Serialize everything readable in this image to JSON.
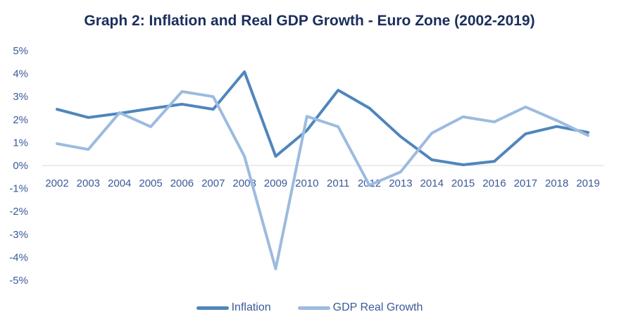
{
  "chart_data": {
    "type": "line",
    "title": "Graph 2: Inflation and Real GDP Growth - Euro Zone (2002-2019)",
    "x": [
      "2002",
      "2003",
      "2004",
      "2005",
      "2006",
      "2007",
      "2008",
      "2009",
      "2010",
      "2011",
      "2012",
      "2013",
      "2014",
      "2015",
      "2016",
      "2017",
      "2018",
      "2019"
    ],
    "ylim": [
      -5,
      5
    ],
    "yticks": [
      "5%",
      "4%",
      "3%",
      "2%",
      "1%",
      "0%",
      "-1%",
      "-2%",
      "-3%",
      "-4%",
      "-5%"
    ],
    "ytick_values": [
      5,
      4,
      3,
      2,
      1,
      0,
      -1,
      -2,
      -3,
      -4,
      -5
    ],
    "grid": false,
    "legend": "bottom",
    "series": [
      {
        "name": "Inflation",
        "color": "#4f86bd",
        "values": [
          2.45,
          2.09,
          2.27,
          2.48,
          2.67,
          2.45,
          4.08,
          0.4,
          1.53,
          3.28,
          2.5,
          1.26,
          0.25,
          0.03,
          0.18,
          1.38,
          1.7,
          1.44
        ]
      },
      {
        "name": "GDP Real Growth",
        "color": "#9cbbe0",
        "values": [
          0.95,
          0.7,
          2.3,
          1.69,
          3.22,
          3.0,
          0.4,
          -4.5,
          2.14,
          1.69,
          -0.86,
          -0.28,
          1.41,
          2.12,
          1.9,
          2.55,
          1.96,
          1.31
        ]
      }
    ]
  }
}
